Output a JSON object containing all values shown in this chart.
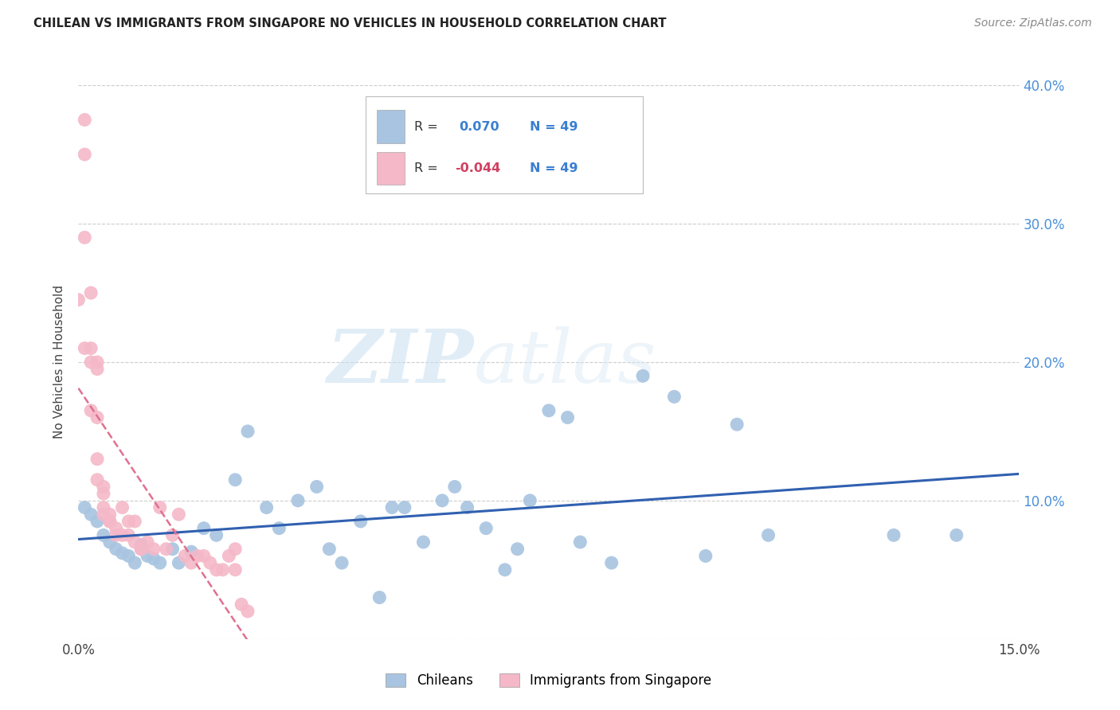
{
  "title": "CHILEAN VS IMMIGRANTS FROM SINGAPORE NO VEHICLES IN HOUSEHOLD CORRELATION CHART",
  "source": "Source: ZipAtlas.com",
  "ylabel": "No Vehicles in Household",
  "xlim": [
    0.0,
    0.15
  ],
  "ylim": [
    0.0,
    0.4
  ],
  "xticks": [
    0.0,
    0.03,
    0.06,
    0.09,
    0.12,
    0.15
  ],
  "yticks": [
    0.0,
    0.1,
    0.2,
    0.3,
    0.4
  ],
  "right_ytick_labels": [
    "",
    "10.0%",
    "20.0%",
    "30.0%",
    "40.0%"
  ],
  "xtick_labels": [
    "0.0%",
    "",
    "",
    "",
    "",
    "15.0%"
  ],
  "r_chilean": 0.07,
  "n_chilean": 49,
  "r_singapore": -0.044,
  "n_singapore": 49,
  "chilean_color": "#a8c4e0",
  "singapore_color": "#f4b8c8",
  "chilean_line_color": "#3060b0",
  "singapore_line_color": "#e07090",
  "chilean_scatter_x": [
    0.001,
    0.002,
    0.003,
    0.004,
    0.005,
    0.006,
    0.007,
    0.008,
    0.009,
    0.01,
    0.011,
    0.012,
    0.013,
    0.015,
    0.016,
    0.018,
    0.02,
    0.022,
    0.025,
    0.027,
    0.03,
    0.032,
    0.035,
    0.038,
    0.04,
    0.042,
    0.045,
    0.048,
    0.05,
    0.052,
    0.055,
    0.058,
    0.06,
    0.062,
    0.065,
    0.068,
    0.07,
    0.072,
    0.075,
    0.078,
    0.08,
    0.085,
    0.09,
    0.095,
    0.1,
    0.105,
    0.11,
    0.13,
    0.14
  ],
  "chilean_scatter_y": [
    0.095,
    0.09,
    0.085,
    0.075,
    0.07,
    0.065,
    0.062,
    0.06,
    0.055,
    0.068,
    0.06,
    0.058,
    0.055,
    0.065,
    0.055,
    0.063,
    0.08,
    0.075,
    0.115,
    0.15,
    0.095,
    0.08,
    0.1,
    0.11,
    0.065,
    0.055,
    0.085,
    0.03,
    0.095,
    0.095,
    0.07,
    0.1,
    0.11,
    0.095,
    0.08,
    0.05,
    0.065,
    0.1,
    0.165,
    0.16,
    0.07,
    0.055,
    0.19,
    0.175,
    0.06,
    0.155,
    0.075,
    0.075,
    0.075
  ],
  "singapore_scatter_x": [
    0.0,
    0.001,
    0.001,
    0.001,
    0.001,
    0.002,
    0.002,
    0.002,
    0.002,
    0.003,
    0.003,
    0.003,
    0.003,
    0.003,
    0.004,
    0.004,
    0.004,
    0.004,
    0.005,
    0.005,
    0.005,
    0.006,
    0.006,
    0.007,
    0.007,
    0.008,
    0.008,
    0.009,
    0.009,
    0.01,
    0.01,
    0.011,
    0.012,
    0.013,
    0.014,
    0.015,
    0.016,
    0.017,
    0.018,
    0.019,
    0.02,
    0.021,
    0.022,
    0.023,
    0.024,
    0.025,
    0.025,
    0.026,
    0.027
  ],
  "singapore_scatter_y": [
    0.245,
    0.35,
    0.375,
    0.29,
    0.21,
    0.25,
    0.21,
    0.2,
    0.165,
    0.2,
    0.195,
    0.16,
    0.115,
    0.13,
    0.11,
    0.105,
    0.095,
    0.09,
    0.09,
    0.085,
    0.085,
    0.08,
    0.075,
    0.095,
    0.075,
    0.075,
    0.085,
    0.085,
    0.07,
    0.065,
    0.065,
    0.07,
    0.065,
    0.095,
    0.065,
    0.075,
    0.09,
    0.06,
    0.055,
    0.06,
    0.06,
    0.055,
    0.05,
    0.05,
    0.06,
    0.065,
    0.05,
    0.025,
    0.02
  ]
}
